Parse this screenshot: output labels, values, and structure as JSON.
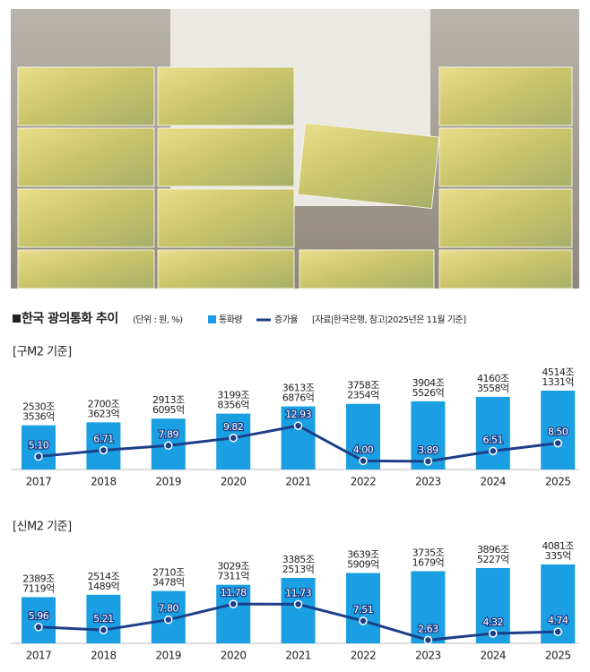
{
  "title": "한국 광의통화 추이",
  "unit": "(단위 : 원, %)",
  "source": "[자료|한국은행, 참고|2025년은 11월 기준]",
  "chart_data": [
    {
      "type": "combo",
      "subtitle": "[구M2 기준]",
      "categories": [
        "2017",
        "2018",
        "2019",
        "2020",
        "2021",
        "2022",
        "2023",
        "2024",
        "2025"
      ],
      "series": [
        {
          "name": "통화량",
          "color": "#1aa0e2",
          "values": [
            25303536,
            27003623,
            29136095,
            31998356,
            36136876,
            37582354,
            39045526,
            41603558,
            45141331
          ],
          "value_labels": [
            "2530조 3536억",
            "2700조 3623억",
            "2913조 6095억",
            "3199조 8356억",
            "3613조 6876억",
            "3758조 2354억",
            "3904조 5526억",
            "4160조 3558억",
            "4514조 1331억"
          ]
        },
        {
          "name": "증가율",
          "color": "#1d3f8a",
          "values": [
            5.1,
            6.71,
            7.89,
            9.82,
            12.93,
            4,
            3.89,
            6.51,
            8.5
          ],
          "value_labels": [
            "5.10",
            "6.71",
            "7.89",
            "9.82",
            "12.93",
            "4.00",
            "3.89",
            "6.51",
            "8.50"
          ]
        }
      ]
    },
    {
      "type": "combo",
      "subtitle": "[신M2 기준]",
      "categories": [
        "2017",
        "2018",
        "2019",
        "2020",
        "2021",
        "2022",
        "2023",
        "2024",
        "2025"
      ],
      "series": [
        {
          "color": "#1aa0e2",
          "values": [
            23897119,
            25141489,
            27103478,
            30297311,
            33852513,
            36395909,
            37351679,
            38965227,
            40810335
          ],
          "value_labels": [
            "2389조 7119억",
            "2514조 1489억",
            "2710조 3478억",
            "3029조 7311억",
            "3385조 2513억",
            "3639조 5909억",
            "3735조 1679억",
            "3896조 5227억",
            "4081조 335억"
          ]
        },
        {
          "color": "#1d3f8a",
          "values": [
            5.96,
            5.21,
            7.8,
            11.78,
            11.73,
            7.51,
            2.63,
            4.32,
            4.74
          ],
          "value_labels": [
            "5.96",
            "5.21",
            "7.80",
            "11.78",
            "11.73",
            "7.51",
            "2.63",
            "4.32",
            "4.74"
          ]
        }
      ]
    }
  ]
}
